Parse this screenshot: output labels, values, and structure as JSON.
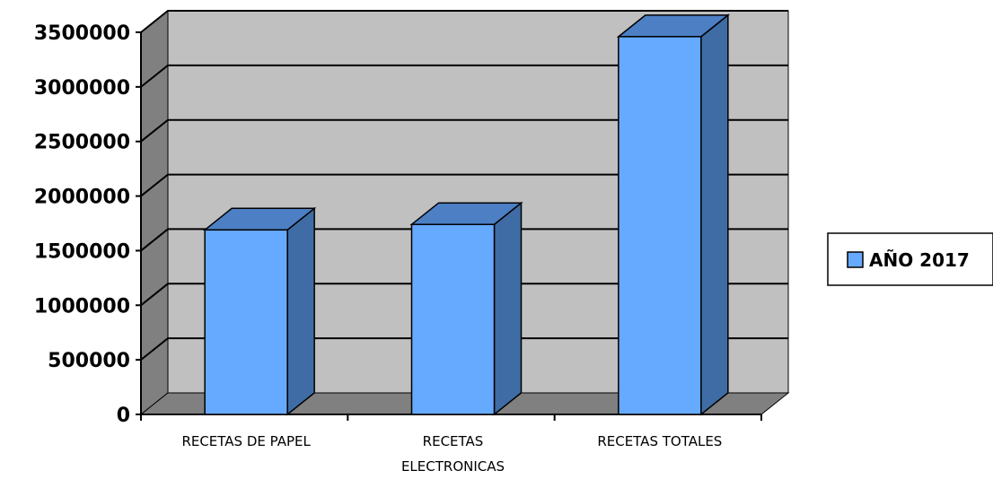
{
  "chart_data": {
    "type": "bar",
    "style": "3d-column",
    "title": "",
    "xlabel": "",
    "ylabel": "",
    "categories": [
      [
        "RECETAS DE PAPEL"
      ],
      [
        "RECETAS",
        "ELECTRONICAS"
      ],
      [
        "RECETAS TOTALES"
      ]
    ],
    "series": [
      {
        "name": "AÑO 2017",
        "values": [
          1690000,
          1740000,
          3460000
        ]
      }
    ],
    "ylim": [
      0,
      3500000
    ],
    "yticks": [
      "0",
      "500000",
      "1000000",
      "1500000",
      "2000000",
      "2500000",
      "3000000",
      "3500000"
    ],
    "grid": true,
    "legend": "right",
    "colors": {
      "bar_front": "#66AAFF",
      "bar_side": "#3F6CA4",
      "bar_top": "#4C7FC4",
      "wall": "#C0C0C0",
      "side_wall": "#808080",
      "floor": "#808080",
      "gridline": "#000000",
      "outline": "#000000"
    }
  }
}
